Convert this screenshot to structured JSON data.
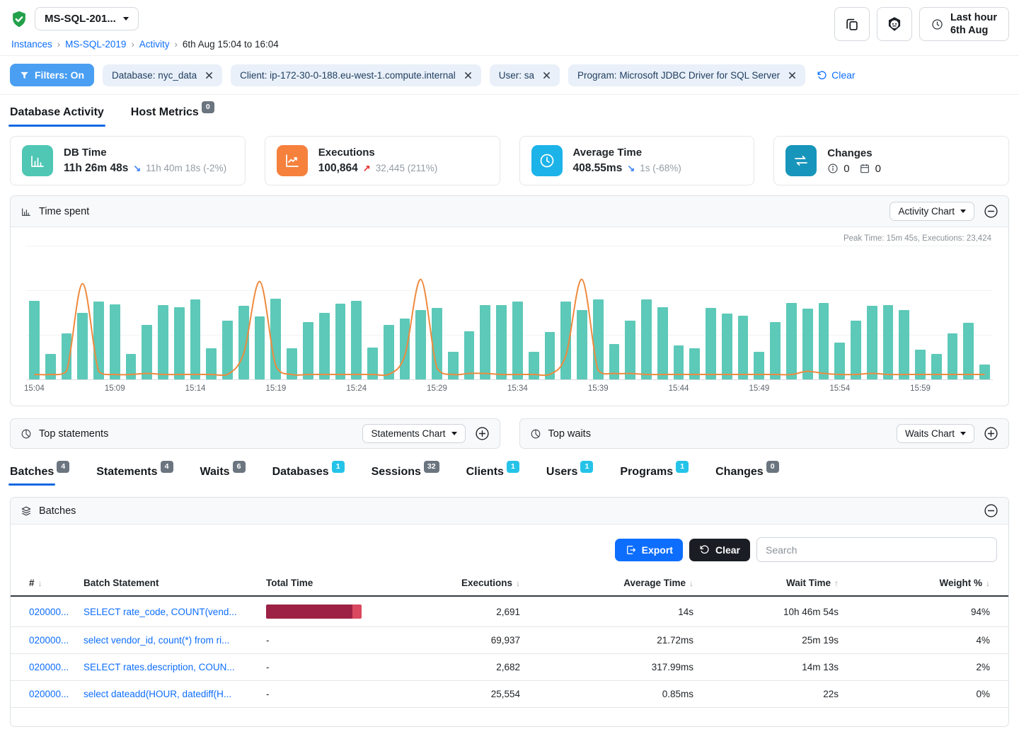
{
  "header": {
    "instance_selector_label": "MS-SQL-201...",
    "breadcrumb": [
      "Instances",
      "MS-SQL-2019",
      "Activity"
    ],
    "breadcrumb_current": "6th Aug 15:04 to 16:04",
    "time_range": {
      "line1": "Last hour",
      "line2": "6th Aug"
    }
  },
  "filter_bar": {
    "toggle_label": "Filters: On",
    "chips": [
      "Database: nyc_data",
      "Client: ip-172-30-0-188.eu-west-1.compute.internal",
      "User: sa",
      "Program: Microsoft JDBC Driver for SQL Server"
    ],
    "clear_label": "Clear"
  },
  "main_tabs": {
    "activity_label": "Database Activity",
    "host_label": "Host Metrics",
    "host_badge": "0"
  },
  "cards": {
    "db_time": {
      "title": "DB Time",
      "value": "11h 26m 48s",
      "trend_arrow": "↘",
      "trend": "down",
      "compare": "11h 40m 18s (-2%)",
      "icon": "bar-chart-icon",
      "icon_color": "#4fc7b4"
    },
    "executions": {
      "title": "Executions",
      "value": "100,864",
      "trend_arrow": "↗",
      "trend": "up",
      "compare": "32,445 (211%)",
      "icon": "line-chart-icon",
      "icon_color": "#f5813d"
    },
    "avg_time": {
      "title": "Average Time",
      "value": "408.55ms",
      "trend_arrow": "↘",
      "trend": "down",
      "compare": "1s (-68%)",
      "icon": "clock-icon",
      "icon_color": "#1cb3e8"
    },
    "changes": {
      "title": "Changes",
      "info_count": "0",
      "calendar_count": "0",
      "icon": "swap-arrows-icon",
      "icon_color": "#1895ba"
    }
  },
  "time_spent_panel": {
    "title": "Time spent",
    "chart_selector_label": "Activity Chart",
    "peak_note": "Peak Time: 15m 45s, Executions: 23,424"
  },
  "chart_data": {
    "type": "bar",
    "title": "Time spent",
    "annotation": "Peak Time: 15m 45s, Executions: 23,424",
    "x": [
      "15:04",
      "15:05",
      "15:06",
      "15:07",
      "15:08",
      "15:09",
      "15:10",
      "15:11",
      "15:12",
      "15:13",
      "15:14",
      "15:15",
      "15:16",
      "15:17",
      "15:18",
      "15:19",
      "15:20",
      "15:21",
      "15:22",
      "15:23",
      "15:24",
      "15:25",
      "15:26",
      "15:27",
      "15:28",
      "15:29",
      "15:30",
      "15:31",
      "15:32",
      "15:33",
      "15:34",
      "15:35",
      "15:36",
      "15:37",
      "15:38",
      "15:39",
      "15:40",
      "15:41",
      "15:42",
      "15:43",
      "15:44",
      "15:45",
      "15:46",
      "15:47",
      "15:48",
      "15:49",
      "15:50",
      "15:51",
      "15:52",
      "15:53",
      "15:54",
      "15:55",
      "15:56",
      "15:57",
      "15:58",
      "15:59",
      "16:00",
      "16:01",
      "16:02",
      "16:03"
    ],
    "series": [
      {
        "name": "Time spent",
        "type": "bar",
        "color": "#5dc9b8",
        "values": [
          0.93,
          0.3,
          0.55,
          0.79,
          0.92,
          0.89,
          0.3,
          0.65,
          0.88,
          0.86,
          0.95,
          0.37,
          0.7,
          0.87,
          0.75,
          0.96,
          0.37,
          0.68,
          0.79,
          0.9,
          0.93,
          0.38,
          0.65,
          0.72,
          0.82,
          0.85,
          0.33,
          0.57,
          0.88,
          0.88,
          0.92,
          0.33,
          0.56,
          0.92,
          0.82,
          0.95,
          0.42,
          0.7,
          0.95,
          0.86,
          0.4,
          0.37,
          0.85,
          0.78,
          0.76,
          0.33,
          0.68,
          0.91,
          0.84,
          0.91,
          0.44,
          0.7,
          0.87,
          0.88,
          0.82,
          0.35,
          0.3,
          0.55,
          0.67,
          0.18
        ]
      },
      {
        "name": "Executions",
        "type": "line",
        "color": "#ee8a3e",
        "values": [
          0.02,
          0.02,
          0.05,
          0.88,
          0.05,
          0.02,
          0.02,
          0.03,
          0.02,
          0.02,
          0.02,
          0.02,
          0.02,
          0.22,
          0.9,
          0.1,
          0.02,
          0.02,
          0.02,
          0.02,
          0.02,
          0.02,
          0.02,
          0.2,
          0.92,
          0.08,
          0.02,
          0.03,
          0.03,
          0.02,
          0.02,
          0.02,
          0.02,
          0.2,
          0.92,
          0.06,
          0.03,
          0.03,
          0.02,
          0.02,
          0.02,
          0.02,
          0.02,
          0.02,
          0.02,
          0.02,
          0.02,
          0.02,
          0.05,
          0.03,
          0.02,
          0.02,
          0.03,
          0.02,
          0.02,
          0.02,
          0.02,
          0.02,
          0.02,
          0.02
        ]
      }
    ],
    "x_tick_labels": [
      "15:04",
      "15:09",
      "15:14",
      "15:19",
      "15:24",
      "15:29",
      "15:34",
      "15:39",
      "15:44",
      "15:49",
      "15:54",
      "15:59"
    ],
    "x_tick_indices": [
      0,
      5,
      10,
      15,
      20,
      25,
      30,
      35,
      40,
      45,
      50,
      55
    ],
    "ylim": [
      0,
      1
    ],
    "grid": true,
    "legend": "none"
  },
  "top_statements_panel": {
    "title": "Top statements",
    "selector_label": "Statements Chart"
  },
  "top_waits_panel": {
    "title": "Top waits",
    "selector_label": "Waits Chart"
  },
  "bottom_tabs": [
    {
      "label": "Batches",
      "badge": "4",
      "badge_color": "gray",
      "active": true
    },
    {
      "label": "Statements",
      "badge": "4",
      "badge_color": "gray",
      "active": false
    },
    {
      "label": "Waits",
      "badge": "6",
      "badge_color": "gray",
      "active": false
    },
    {
      "label": "Databases",
      "badge": "1",
      "badge_color": "cyan",
      "active": false
    },
    {
      "label": "Sessions",
      "badge": "32",
      "badge_color": "gray",
      "active": false
    },
    {
      "label": "Clients",
      "badge": "1",
      "badge_color": "cyan",
      "active": false
    },
    {
      "label": "Users",
      "badge": "1",
      "badge_color": "cyan",
      "active": false
    },
    {
      "label": "Programs",
      "badge": "1",
      "badge_color": "cyan",
      "active": false
    },
    {
      "label": "Changes",
      "badge": "0",
      "badge_color": "gray",
      "active": false
    }
  ],
  "batches_panel": {
    "title": "Batches",
    "export_label": "Export",
    "clear_label": "Clear",
    "search_placeholder": "Search",
    "table": {
      "columns": [
        {
          "label": "#",
          "sort": "down",
          "align": "left"
        },
        {
          "label": "Batch Statement",
          "align": "left"
        },
        {
          "label": "Total Time",
          "align": "left"
        },
        {
          "label": "Executions",
          "sort": "down",
          "align": "right"
        },
        {
          "label": "Average Time",
          "sort": "down",
          "align": "right"
        },
        {
          "label": "Wait Time",
          "sort": "up",
          "align": "right"
        },
        {
          "label": "Weight %",
          "sort": "down",
          "align": "right"
        }
      ],
      "rows": [
        {
          "id": "020000...",
          "statement": "SELECT rate_code, COUNT(vend...",
          "total_time": "",
          "total_time_bar": {
            "segments": [
              {
                "color": "#9d2144",
                "fraction": 0.9
              },
              {
                "color": "#d9485e",
                "fraction": 0.1
              }
            ]
          },
          "executions": "2,691",
          "average_time": "14s",
          "wait_time": "10h 46m 54s",
          "weight": "94%"
        },
        {
          "id": "020000...",
          "statement": "select vendor_id, count(*) from ri...",
          "total_time": "-",
          "executions": "69,937",
          "average_time": "21.72ms",
          "wait_time": "25m 19s",
          "weight": "4%"
        },
        {
          "id": "020000...",
          "statement": "SELECT rates.description, COUN...",
          "total_time": "-",
          "executions": "2,682",
          "average_time": "317.99ms",
          "wait_time": "14m 13s",
          "weight": "2%"
        },
        {
          "id": "020000...",
          "statement": "select dateadd(HOUR, datediff(H...",
          "total_time": "-",
          "executions": "25,554",
          "average_time": "0.85ms",
          "wait_time": "22s",
          "weight": "0%"
        }
      ]
    }
  },
  "colors": {
    "accent_blue": "#0d6efd",
    "filter_pill": "#4a9ff2",
    "bar_teal": "#5dc9b8",
    "line_orange": "#ee8a3e",
    "badge_gray": "#6b7580",
    "badge_cyan": "#25c3e8",
    "total_time_dark": "#9d2144",
    "total_time_light": "#d9485e",
    "active_tab_underline": "#1468e4"
  }
}
